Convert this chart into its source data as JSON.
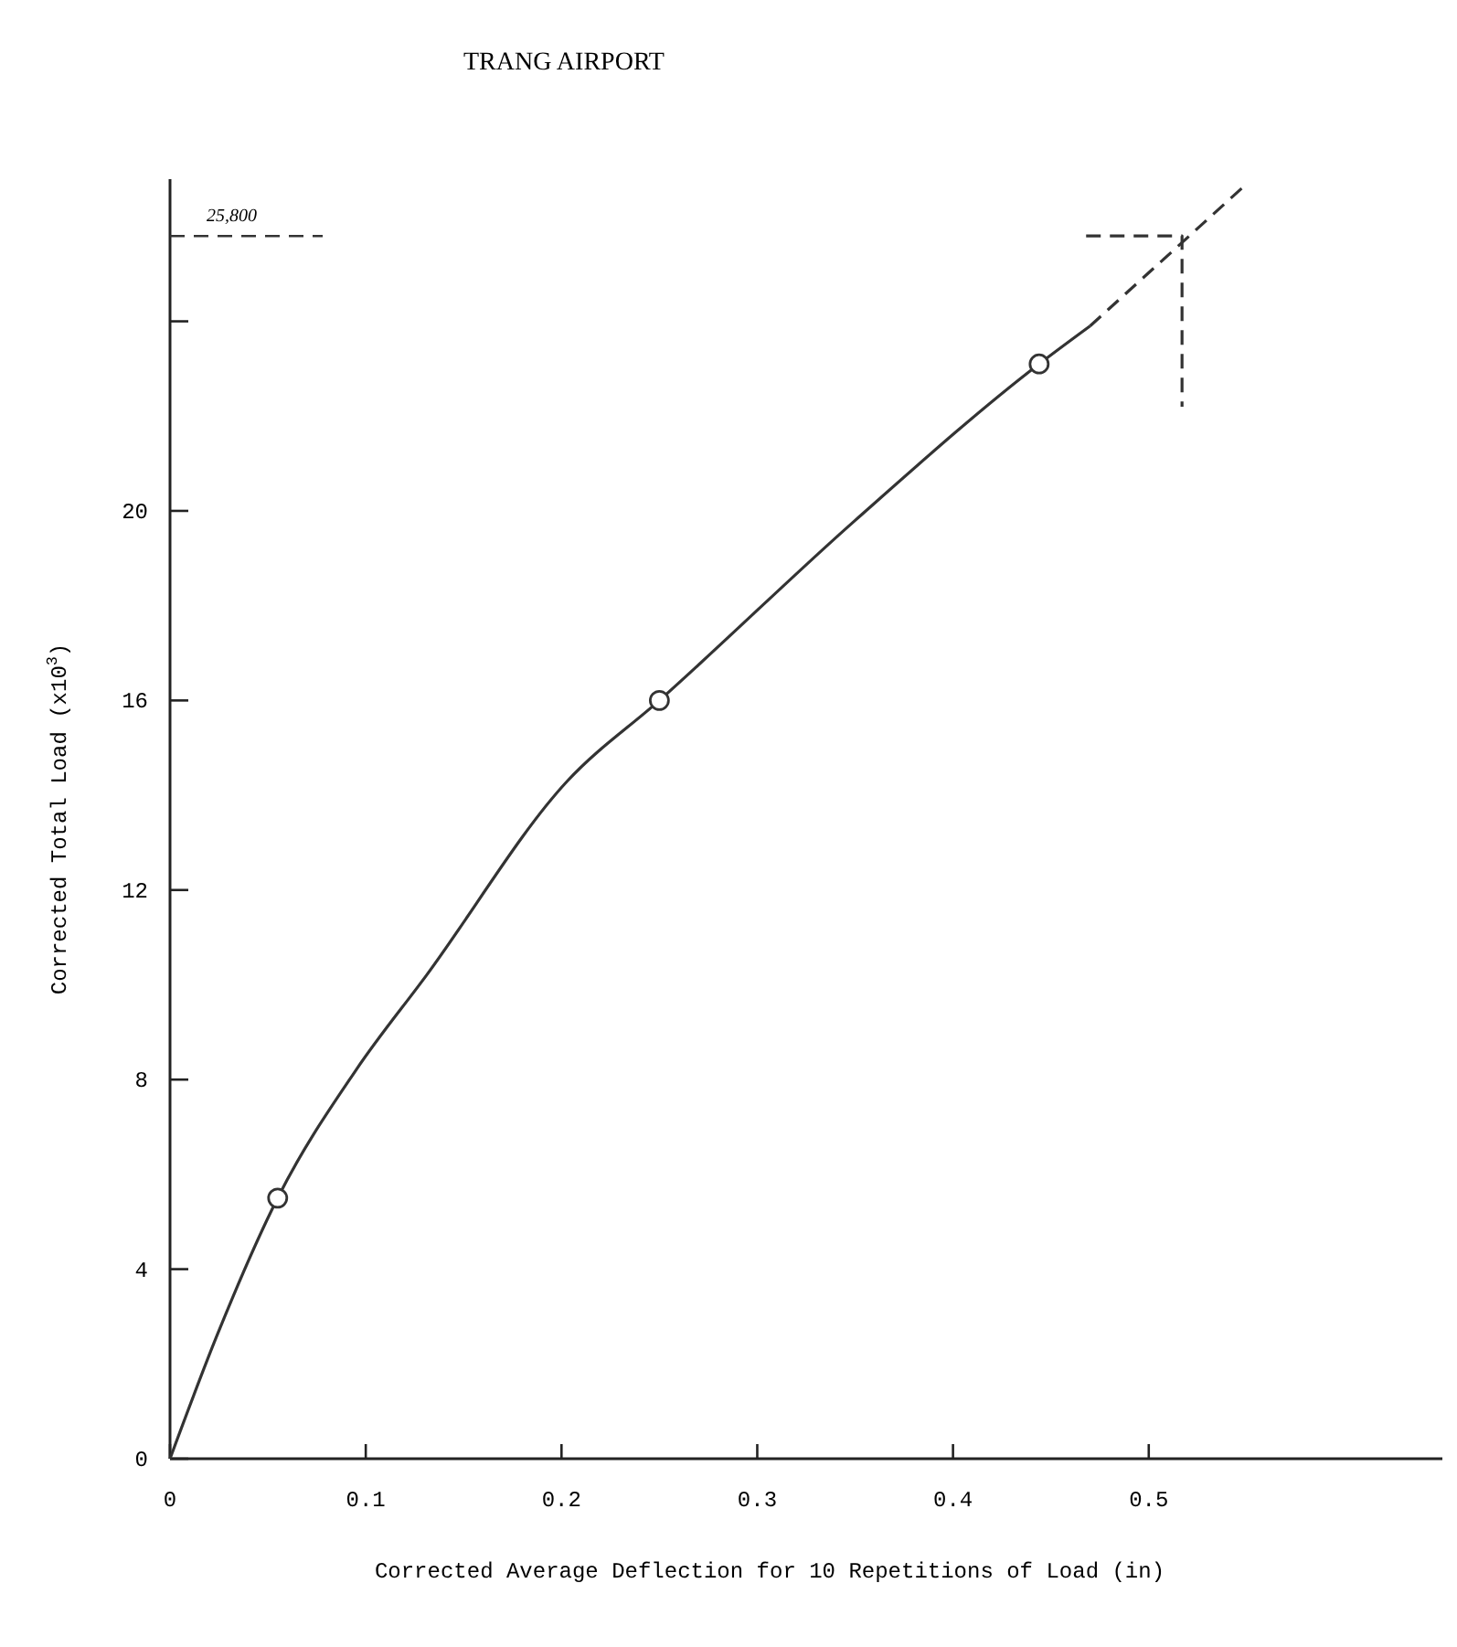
{
  "chart_data": {
    "type": "line",
    "title": "TRANG AIRPORT",
    "xlabel": "Corrected Average Deflection for 10 Repetitions of Load (in)",
    "ylabel": "Corrected Total Load (x10$^{3}$)",
    "xlim": [
      0,
      0.65
    ],
    "xticks": [
      0,
      0.1,
      0.2,
      0.3,
      0.4,
      0.5
    ],
    "ylim": [
      0,
      27
    ],
    "yticks": [
      0,
      4,
      8,
      12,
      16,
      20,
      {
        "value": 24,
        "label": null
      }
    ],
    "series": [
      {
        "color": "#333333",
        "line_style": "solid",
        "x": [
          0,
          0.024,
          0.055,
          0.095,
          0.131,
          0.203,
          0.25,
          0.35,
          0.444,
          0.47
        ],
        "values": [
          0,
          2.6,
          5.5,
          8.2,
          10.2,
          14.3,
          16,
          19.8,
          23.1,
          23.9
        ]
      },
      {
        "color": "#333333",
        "line_style": "dashed",
        "x": [
          0.47,
          0.55
        ],
        "values": [
          23.9,
          26.9
        ]
      },
      {
        "color": "#333333",
        "line_style": "dashed",
        "x": [
          0.468,
          0.517,
          0.517
        ],
        "values": [
          25.8,
          25.8,
          22.2
        ]
      },
      {
        "type": "scatter",
        "color": "#333333",
        "marker": "circle",
        "x": [
          0.055,
          0.25,
          0.444
        ],
        "values": [
          5.5,
          16,
          23.1
        ]
      }
    ],
    "ref_lines": [
      {
        "axis": "y",
        "value": 25.8,
        "label": "25,800",
        "color": "#333333",
        "line_style": "dashed"
      }
    ]
  }
}
